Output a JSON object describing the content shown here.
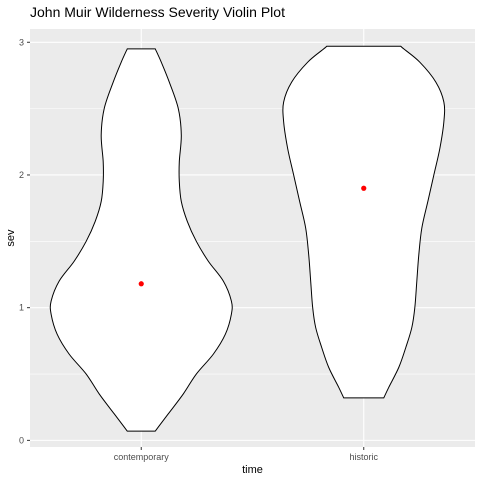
{
  "chart_data": {
    "type": "violin",
    "title": "John Muir Wilderness Severity Violin Plot",
    "xlabel": "time",
    "ylabel": "sev",
    "categories": [
      "contemporary",
      "historic"
    ],
    "ylim": [
      -0.05,
      3.1
    ],
    "yticks": [
      "0",
      "1",
      "2",
      "3"
    ],
    "grid": true,
    "legend": "none",
    "colors": {
      "panel": "#ebebeb",
      "gridline": "#ffffff",
      "violin_fill": "#ffffff",
      "violin_stroke": "#000000",
      "mean_point": "#ff0000",
      "tick_text": "#4d4d4d"
    },
    "series": [
      {
        "category": "contemporary",
        "mean": 1.18,
        "range": [
          0.07,
          2.95
        ],
        "density": [
          [
            0.07,
            0.14
          ],
          [
            0.1,
            0.17
          ],
          [
            0.2,
            0.27
          ],
          [
            0.35,
            0.42
          ],
          [
            0.5,
            0.55
          ],
          [
            0.65,
            0.72
          ],
          [
            0.8,
            0.84
          ],
          [
            0.95,
            0.9
          ],
          [
            1.05,
            0.9
          ],
          [
            1.2,
            0.82
          ],
          [
            1.35,
            0.67
          ],
          [
            1.5,
            0.55
          ],
          [
            1.65,
            0.46
          ],
          [
            1.8,
            0.4
          ],
          [
            1.95,
            0.38
          ],
          [
            2.1,
            0.38
          ],
          [
            2.3,
            0.4
          ],
          [
            2.5,
            0.37
          ],
          [
            2.7,
            0.28
          ],
          [
            2.85,
            0.2
          ],
          [
            2.95,
            0.14
          ]
        ]
      },
      {
        "category": "historic",
        "mean": 1.9,
        "range": [
          0.32,
          2.97
        ],
        "density": [
          [
            0.32,
            0.2
          ],
          [
            0.4,
            0.25
          ],
          [
            0.55,
            0.35
          ],
          [
            0.7,
            0.42
          ],
          [
            0.85,
            0.48
          ],
          [
            1.0,
            0.51
          ],
          [
            1.2,
            0.53
          ],
          [
            1.4,
            0.55
          ],
          [
            1.6,
            0.58
          ],
          [
            1.8,
            0.64
          ],
          [
            2.0,
            0.7
          ],
          [
            2.2,
            0.76
          ],
          [
            2.4,
            0.8
          ],
          [
            2.55,
            0.8
          ],
          [
            2.7,
            0.72
          ],
          [
            2.85,
            0.56
          ],
          [
            2.95,
            0.4
          ],
          [
            2.97,
            0.37
          ]
        ]
      }
    ]
  }
}
